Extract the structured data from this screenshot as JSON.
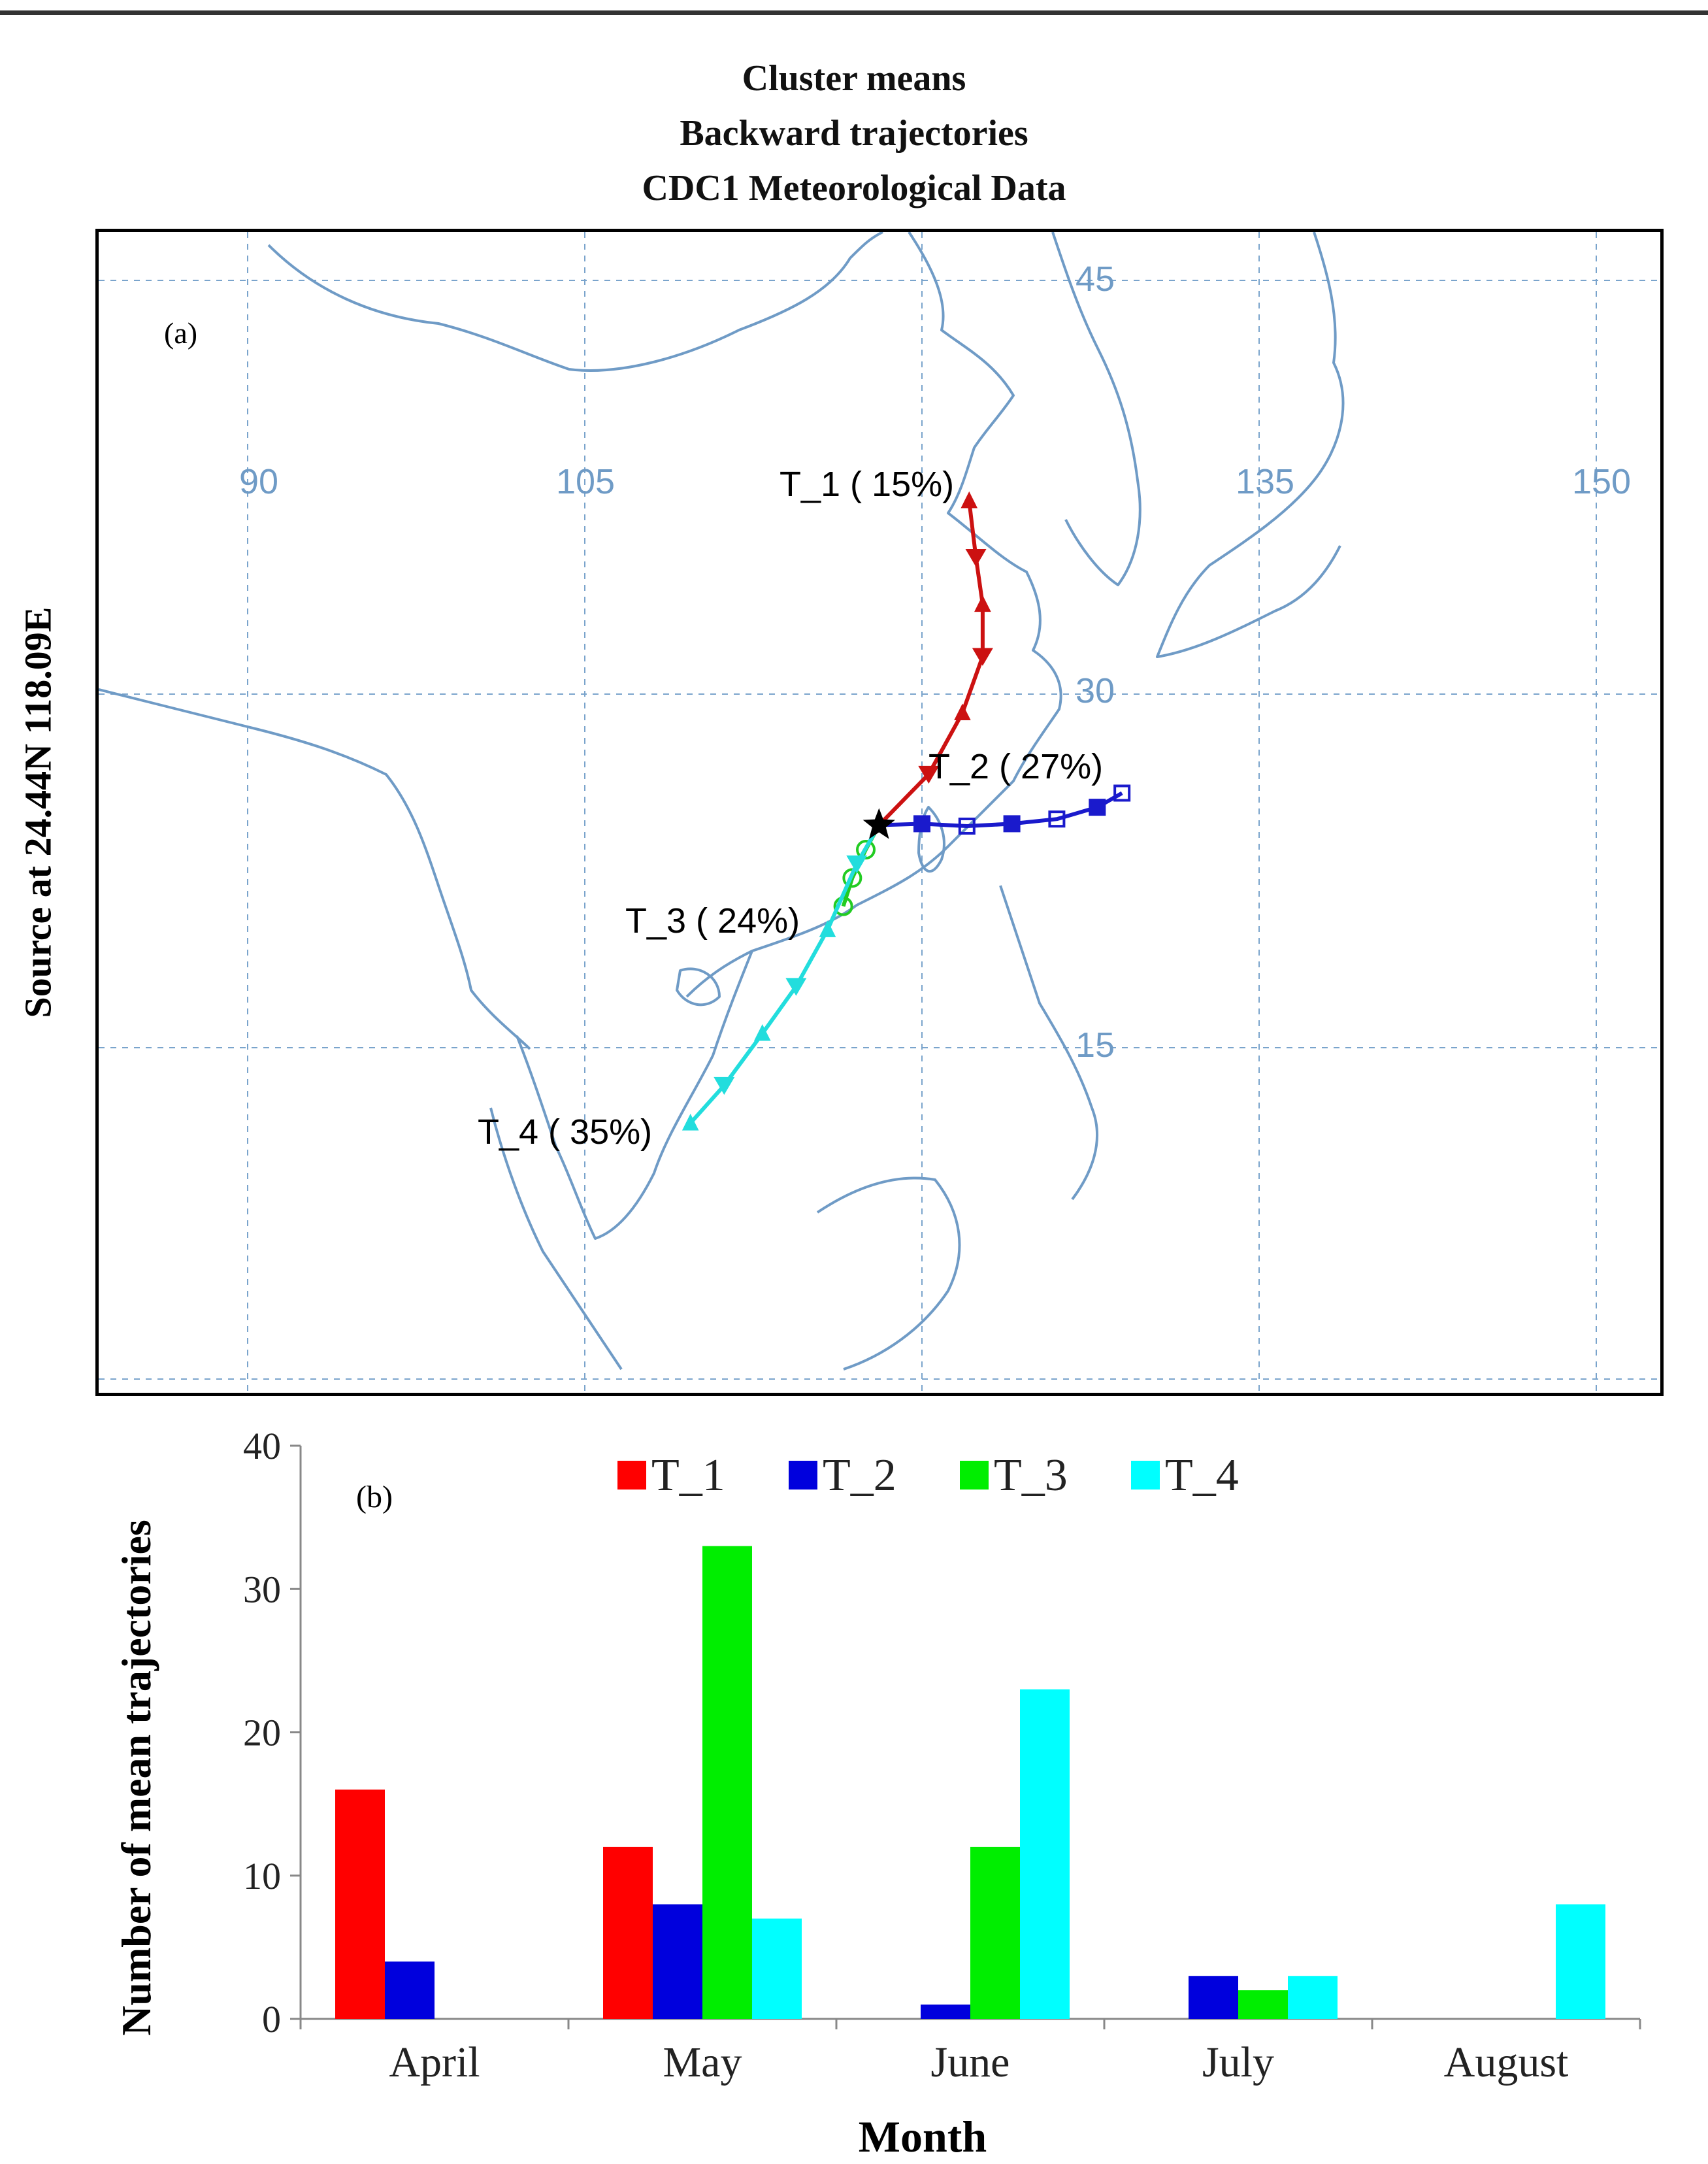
{
  "figure": {
    "title_lines": [
      "Cluster means",
      "Backward trajectories",
      "CDC1 Meteorological Data"
    ],
    "source_label": "Source   at   24.44N 118.09E",
    "panel_a_label": "(a)",
    "panel_b_label": "(b)"
  },
  "map": {
    "longitude_labels": [
      "90",
      "105",
      "135",
      "150"
    ],
    "latitude_labels": [
      "45",
      "30",
      "15"
    ],
    "source_point": {
      "lat": 24.44,
      "lon": 118.09
    },
    "trajectories": [
      {
        "id": "T_1",
        "label": "T_1 ( 15%)",
        "color": "#cc1111",
        "marker": "triangle",
        "points": [
          [
            118.09,
            24.44
          ],
          [
            120.3,
            26.6
          ],
          [
            121.8,
            29.2
          ],
          [
            122.7,
            31.6
          ],
          [
            122.7,
            33.8
          ],
          [
            122.4,
            35.8
          ],
          [
            122.1,
            38.2
          ]
        ]
      },
      {
        "id": "T_2",
        "label": "T_2 ( 27%)",
        "color": "#1a1acc",
        "marker": "square",
        "points": [
          [
            118.09,
            24.44
          ],
          [
            120.0,
            24.5
          ],
          [
            122.0,
            24.4
          ],
          [
            124.0,
            24.5
          ],
          [
            126.0,
            24.7
          ],
          [
            127.8,
            25.2
          ],
          [
            128.9,
            25.8
          ]
        ]
      },
      {
        "id": "T_3",
        "label": "T_3 ( 24%)",
        "color": "#22cc22",
        "marker": "circle",
        "points": [
          [
            118.09,
            24.44
          ],
          [
            117.5,
            23.4
          ],
          [
            116.9,
            22.2
          ],
          [
            116.5,
            21.0
          ]
        ]
      },
      {
        "id": "T_4",
        "label": "T_4 ( 35%)",
        "color": "#22dddd",
        "marker": "triangle",
        "points": [
          [
            118.09,
            24.44
          ],
          [
            117.1,
            22.8
          ],
          [
            115.8,
            20.0
          ],
          [
            114.4,
            17.6
          ],
          [
            112.9,
            15.6
          ],
          [
            111.2,
            13.4
          ],
          [
            109.7,
            11.8
          ]
        ]
      }
    ]
  },
  "chart_data": {
    "type": "bar",
    "title": "",
    "xlabel": "Month",
    "ylabel": "Number of mean trajectories",
    "categories": [
      "April",
      "May",
      "June",
      "July",
      "August"
    ],
    "ylim": [
      0,
      40
    ],
    "yticks": [
      "0",
      "10",
      "20",
      "30",
      "40"
    ],
    "legend_position": "top-center",
    "grid": false,
    "series": [
      {
        "name": "T_1",
        "color": "#ff0000",
        "values": [
          16,
          12,
          0,
          0,
          0
        ]
      },
      {
        "name": "T_2",
        "color": "#0000dd",
        "values": [
          4,
          8,
          1,
          3,
          0
        ]
      },
      {
        "name": "T_3",
        "color": "#00ee00",
        "values": [
          0,
          33,
          12,
          2,
          0
        ]
      },
      {
        "name": "T_4",
        "color": "#00ffff",
        "values": [
          0,
          7,
          23,
          3,
          8
        ]
      }
    ]
  }
}
